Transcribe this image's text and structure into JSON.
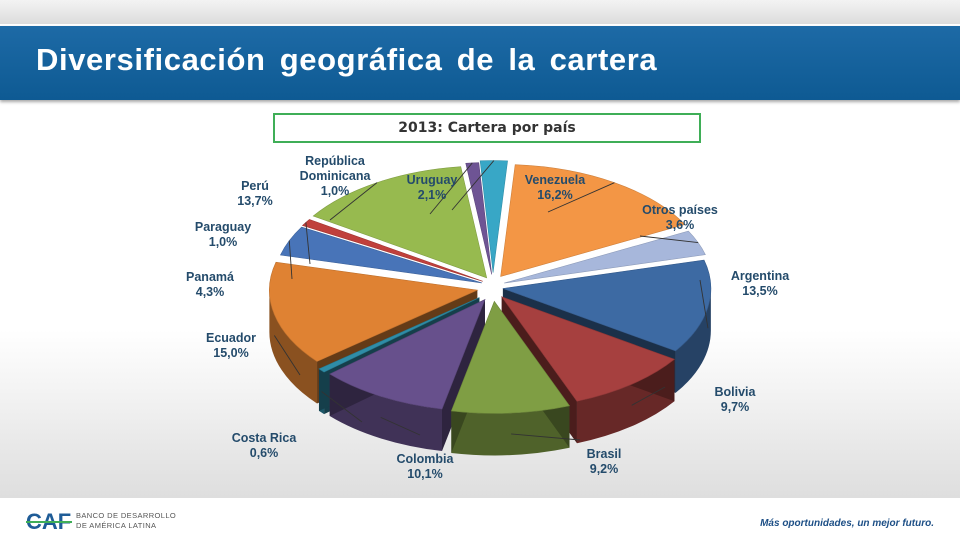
{
  "slide": {
    "title": "Diversificación geográfica de la cartera",
    "subtitle": "2013: Cartera por país",
    "footer_logo_text_line1": "BANCO DE DESARROLLO",
    "footer_logo_text_line2": "DE AMÉRICA LATINA",
    "footer_logo_mark": "CAF",
    "slogan": "Más oportunidades, un mejor futuro."
  },
  "chart_data": {
    "type": "pie",
    "title": "2013: Cartera por país",
    "style": "3d-exploded",
    "slices": [
      {
        "label": "Venezuela",
        "value": 16.2,
        "display": "16,2%",
        "color": "#f39645"
      },
      {
        "label": "Otros países",
        "value": 3.6,
        "display": "3,6%",
        "color": "#a7b7db"
      },
      {
        "label": "Argentina",
        "value": 13.5,
        "display": "13,5%",
        "color": "#3d6aa3"
      },
      {
        "label": "Bolivia",
        "value": 9.7,
        "display": "9,7%",
        "color": "#a6403f"
      },
      {
        "label": "Brasil",
        "value": 9.2,
        "display": "9,2%",
        "color": "#7f9e44"
      },
      {
        "label": "Colombia",
        "value": 10.1,
        "display": "10,1%",
        "color": "#67508c"
      },
      {
        "label": "Costa Rica",
        "value": 0.6,
        "display": "0,6%",
        "color": "#2f8da7"
      },
      {
        "label": "Ecuador",
        "value": 15.0,
        "display": "15,0%",
        "color": "#df8233"
      },
      {
        "label": "Panamá",
        "value": 4.3,
        "display": "4,3%",
        "color": "#4874b8"
      },
      {
        "label": "Paraguay",
        "value": 1.0,
        "display": "1,0%",
        "color": "#c0403c"
      },
      {
        "label": "Perú",
        "value": 13.7,
        "display": "13,7%",
        "color": "#97ba4f"
      },
      {
        "label": "República Dominicana",
        "value": 1.0,
        "display": "1,0%",
        "color": "#6e5494"
      },
      {
        "label": "Uruguay",
        "value": 2.1,
        "display": "2,1%",
        "color": "#38a7c6"
      }
    ]
  }
}
